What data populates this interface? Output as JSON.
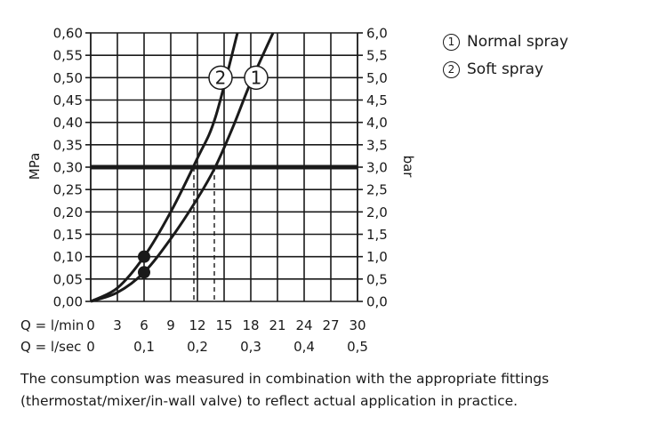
{
  "chart_data": {
    "type": "line",
    "y_left": {
      "label": "MPa",
      "ticks": [
        "0,00",
        "0,05",
        "0,10",
        "0,15",
        "0,20",
        "0,25",
        "0,30",
        "0,35",
        "0,40",
        "0,45",
        "0,50",
        "0,55",
        "0,60"
      ],
      "range": [
        0,
        0.6
      ]
    },
    "y_right": {
      "label": "bar",
      "ticks": [
        "0,0",
        "0,5",
        "1,0",
        "1,5",
        "2,0",
        "2,5",
        "3,0",
        "3,5",
        "4,0",
        "4,5",
        "5,0",
        "5,5",
        "6,0"
      ],
      "range": [
        0,
        6
      ]
    },
    "x_rows": [
      {
        "label": "Q = l/min",
        "ticks": [
          "0",
          "3",
          "6",
          "9",
          "12",
          "15",
          "18",
          "21",
          "24",
          "27",
          "30"
        ],
        "values": [
          0,
          3,
          6,
          9,
          12,
          15,
          18,
          21,
          24,
          27,
          30
        ]
      },
      {
        "label": "Q = l/sec",
        "ticks": [
          "0",
          "0,1",
          "0,2",
          "0,3",
          "0,4",
          "0,5"
        ],
        "values": [
          0,
          6,
          12,
          18,
          24,
          30
        ]
      }
    ],
    "xlim": [
      0,
      30
    ],
    "series": [
      {
        "name": "1",
        "x": [
          0,
          3,
          6,
          9,
          12,
          14,
          16,
          18,
          20.5
        ],
        "y": [
          0,
          0.02,
          0.065,
          0.14,
          0.23,
          0.3,
          0.39,
          0.49,
          0.6
        ]
      },
      {
        "name": "2",
        "x": [
          0,
          3,
          6,
          9,
          12,
          14,
          16.5
        ],
        "y": [
          0,
          0.03,
          0.1,
          0.2,
          0.32,
          0.41,
          0.6
        ]
      }
    ],
    "reference_line": {
      "y": 0.3
    },
    "markers": [
      {
        "x": 6,
        "y": 0.1
      },
      {
        "x": 6,
        "y": 0.065
      }
    ],
    "dashed_drops": [
      {
        "x": 11.6,
        "y": 0.3
      },
      {
        "x": 13.9,
        "y": 0.3
      }
    ],
    "curve_labels": [
      {
        "text": "2",
        "x": 14.6,
        "y": 0.5
      },
      {
        "text": "1",
        "x": 18.6,
        "y": 0.5
      }
    ],
    "grid": true
  },
  "legend": [
    {
      "symbol": "1",
      "label": "Normal spray"
    },
    {
      "symbol": "2",
      "label": "Soft spray"
    }
  ],
  "caption": "The consumption was measured in combination with the appropriate fittings (thermostat/mixer/in-wall valve) to reflect actual application in practice."
}
